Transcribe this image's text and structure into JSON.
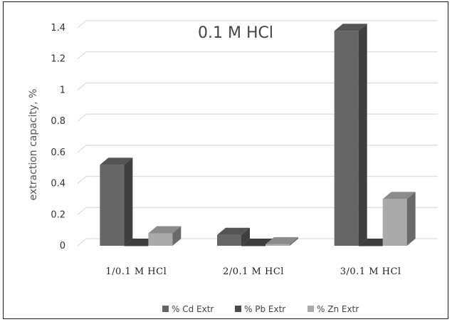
{
  "chart_data": {
    "type": "bar",
    "title": "0.1 M HCl",
    "xlabel": "",
    "ylabel": "extraction capacity, %",
    "categories": [
      "1/0.1 M HCl",
      "2/0.1 M HCl",
      "3/0.1 M HCl"
    ],
    "series": [
      {
        "name": "% Cd Extr",
        "values": [
          0.52,
          0.07,
          1.38
        ],
        "color": "#666666"
      },
      {
        "name": "% Pb Extr",
        "values": [
          0.0,
          0.0,
          0.0
        ],
        "color": "#4a4a4a"
      },
      {
        "name": "% Zn Extr",
        "values": [
          0.08,
          0.01,
          0.3
        ],
        "color": "#aaaaaa"
      }
    ],
    "ylim": [
      0,
      1.4
    ],
    "yticks": [
      0,
      0.2,
      0.4,
      0.6,
      0.8,
      1,
      1.2,
      1.4
    ],
    "ytick_labels": [
      "0",
      "0.2",
      "0.4",
      "0.6",
      "0.8",
      "1",
      "1.2",
      "1.4"
    ],
    "grid": true,
    "style": "3d-clustered-column",
    "legend_position": "bottom"
  }
}
